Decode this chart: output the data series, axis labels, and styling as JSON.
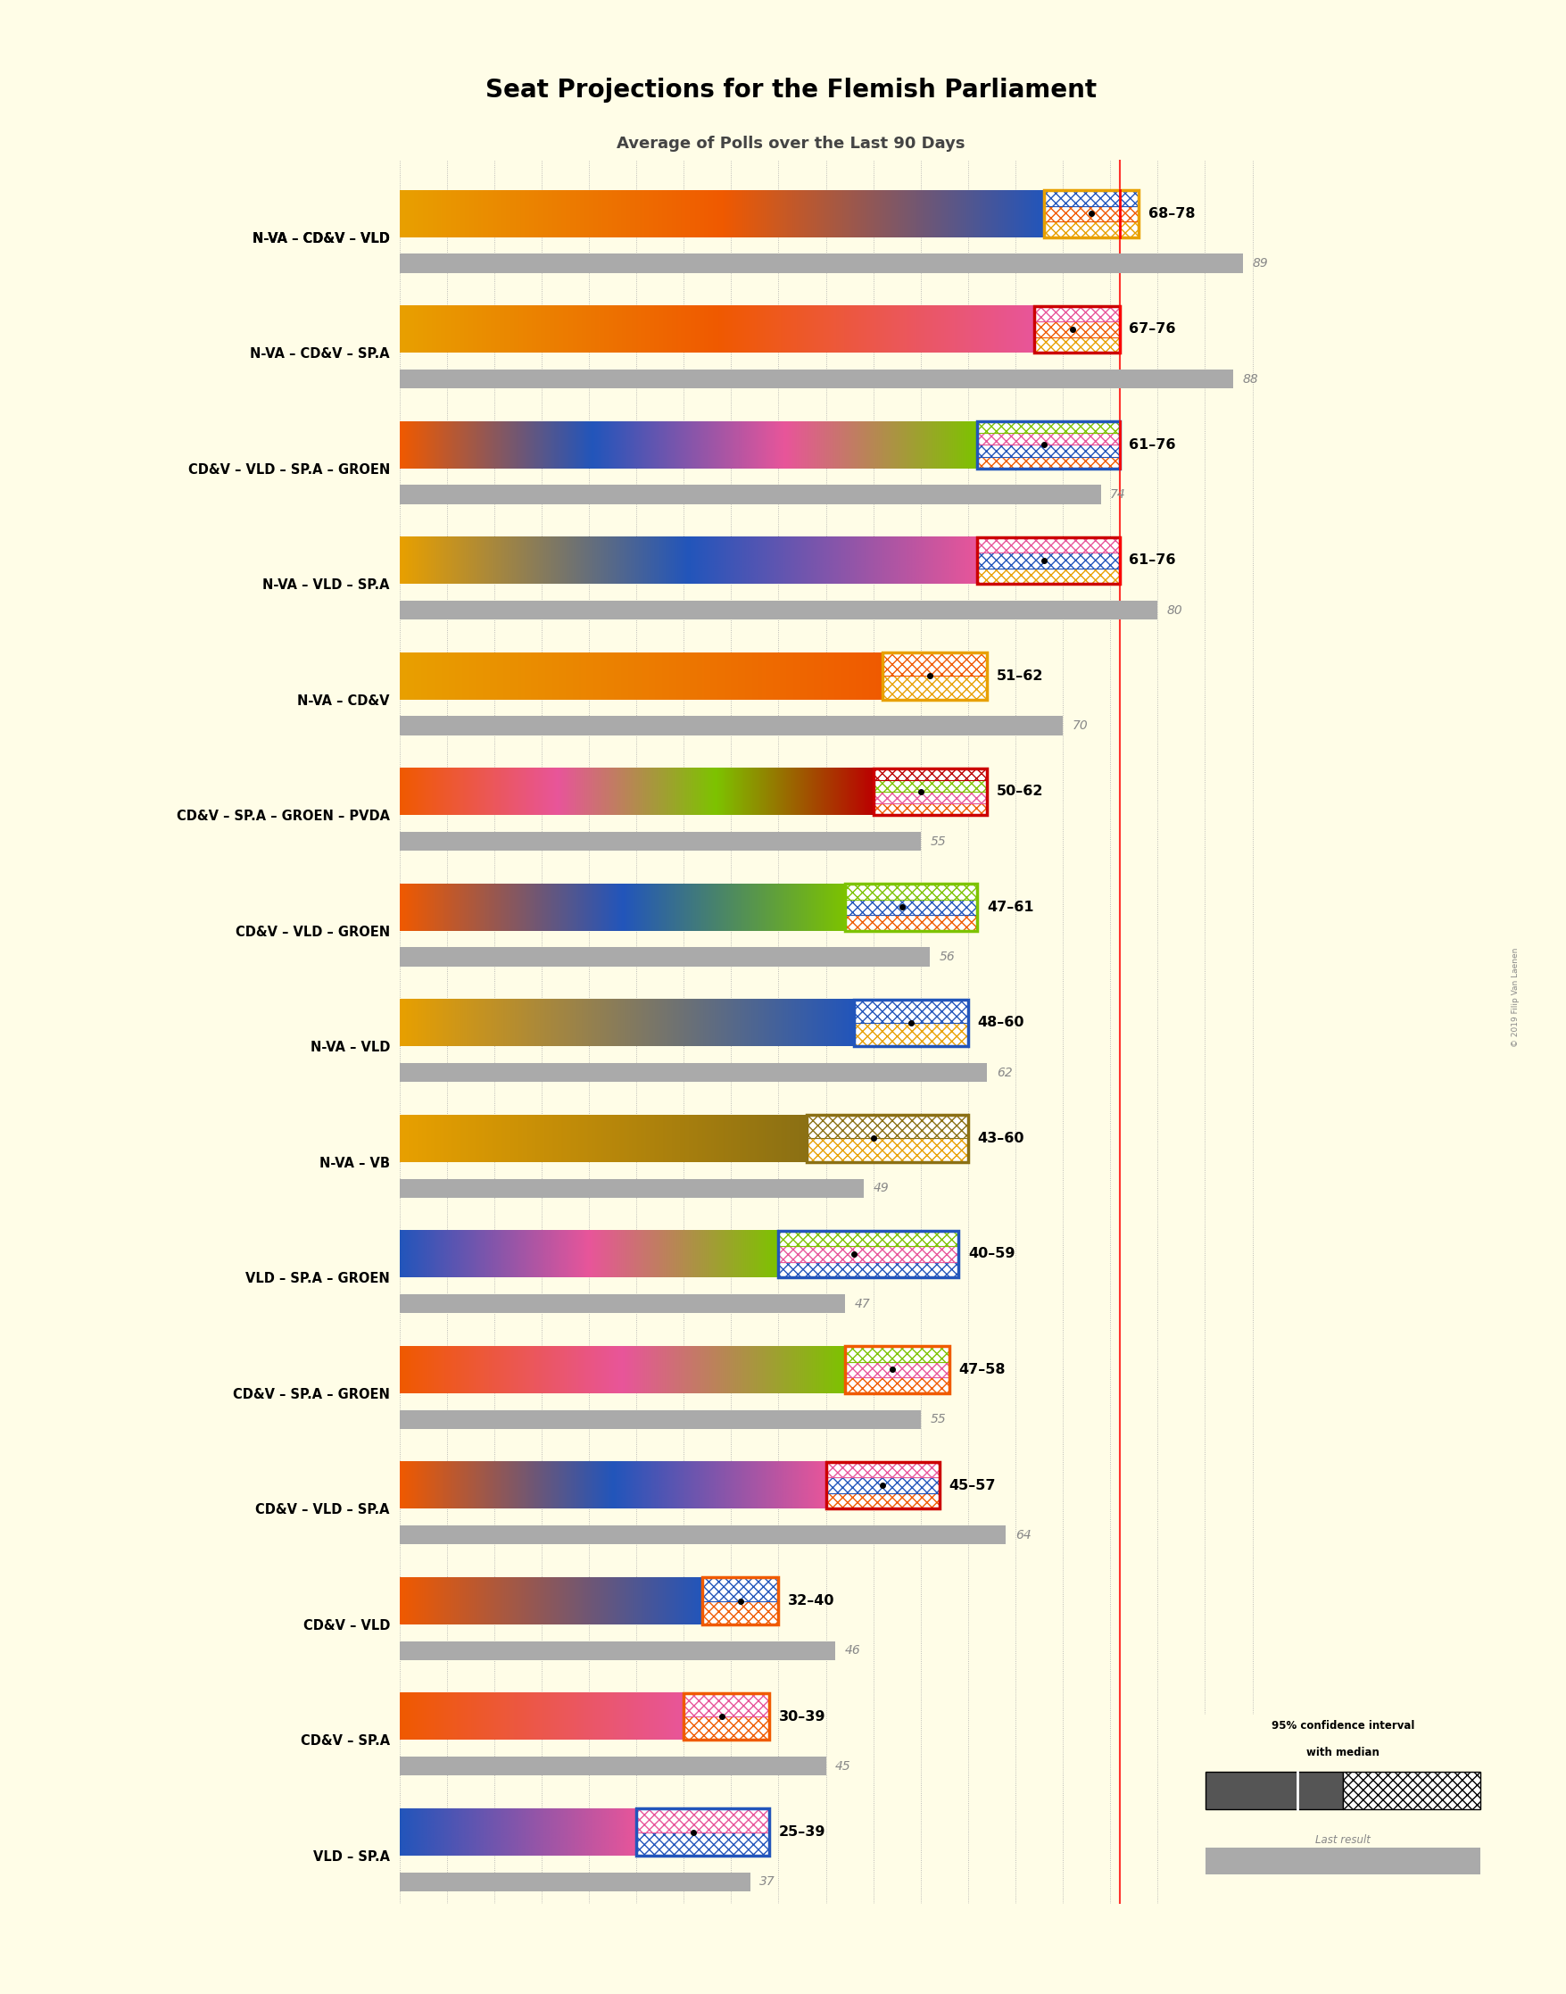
{
  "title": "Seat Projections for the Flemish Parliament",
  "subtitle": "Average of Polls over the Last 90 Days",
  "background_color": "#FFFDE7",
  "majority_line": 76,
  "x_max": 95,
  "coalitions": [
    {
      "label": "N-VA – CD&V – VLD",
      "underline": true,
      "ci_low": 68,
      "ci_high": 78,
      "median": 73,
      "last_result": 89,
      "parties": [
        "N-VA",
        "CD&V",
        "VLD"
      ],
      "box_color": "#E8A000",
      "has_red_border": false
    },
    {
      "label": "N-VA – CD&V – SP.A",
      "underline": false,
      "ci_low": 67,
      "ci_high": 76,
      "median": 71,
      "last_result": 88,
      "parties": [
        "N-VA",
        "CD&V",
        "SP.A"
      ],
      "box_color": "#E8A000",
      "has_red_border": true
    },
    {
      "label": "CD&V – VLD – SP.A – GROEN",
      "underline": false,
      "ci_low": 61,
      "ci_high": 76,
      "median": 68,
      "last_result": 74,
      "parties": [
        "CD&V",
        "VLD",
        "SP.A",
        "GROEN"
      ],
      "box_color": "#2255BB",
      "has_red_border": false
    },
    {
      "label": "N-VA – VLD – SP.A",
      "underline": false,
      "ci_low": 61,
      "ci_high": 76,
      "median": 68,
      "last_result": 80,
      "parties": [
        "N-VA",
        "VLD",
        "SP.A"
      ],
      "box_color": "#2255BB",
      "has_red_border": true
    },
    {
      "label": "N-VA – CD&V",
      "underline": false,
      "ci_low": 51,
      "ci_high": 62,
      "median": 56,
      "last_result": 70,
      "parties": [
        "N-VA",
        "CD&V"
      ],
      "box_color": "#E8A000",
      "has_red_border": false
    },
    {
      "label": "CD&V – SP.A – GROEN – PVDA",
      "underline": false,
      "ci_low": 50,
      "ci_high": 62,
      "median": 55,
      "last_result": 55,
      "parties": [
        "CD&V",
        "SP.A",
        "GROEN",
        "PVDA"
      ],
      "box_color": "#BB0000",
      "has_red_border": true
    },
    {
      "label": "CD&V – VLD – GROEN",
      "underline": false,
      "ci_low": 47,
      "ci_high": 61,
      "median": 53,
      "last_result": 56,
      "parties": [
        "CD&V",
        "VLD",
        "GROEN"
      ],
      "box_color": "#7DC300",
      "has_red_border": false
    },
    {
      "label": "N-VA – VLD",
      "underline": false,
      "ci_low": 48,
      "ci_high": 60,
      "median": 54,
      "last_result": 62,
      "parties": [
        "N-VA",
        "VLD"
      ],
      "box_color": "#2255BB",
      "has_red_border": false
    },
    {
      "label": "N-VA – VB",
      "underline": false,
      "ci_low": 43,
      "ci_high": 60,
      "median": 50,
      "last_result": 49,
      "parties": [
        "N-VA",
        "VB"
      ],
      "box_color": "#8B7014",
      "has_red_border": false
    },
    {
      "label": "VLD – SP.A – GROEN",
      "underline": false,
      "ci_low": 40,
      "ci_high": 59,
      "median": 48,
      "last_result": 47,
      "parties": [
        "VLD",
        "SP.A",
        "GROEN"
      ],
      "box_color": "#2255BB",
      "has_red_border": false
    },
    {
      "label": "CD&V – SP.A – GROEN",
      "underline": false,
      "ci_low": 47,
      "ci_high": 58,
      "median": 52,
      "last_result": 55,
      "parties": [
        "CD&V",
        "SP.A",
        "GROEN"
      ],
      "box_color": "#F05A00",
      "has_red_border": false
    },
    {
      "label": "CD&V – VLD – SP.A",
      "underline": false,
      "ci_low": 45,
      "ci_high": 57,
      "median": 51,
      "last_result": 64,
      "parties": [
        "CD&V",
        "VLD",
        "SP.A"
      ],
      "box_color": "#2255BB",
      "has_red_border": true
    },
    {
      "label": "CD&V – VLD",
      "underline": false,
      "ci_low": 32,
      "ci_high": 40,
      "median": 36,
      "last_result": 46,
      "parties": [
        "CD&V",
        "VLD"
      ],
      "box_color": "#F05A00",
      "has_red_border": false
    },
    {
      "label": "CD&V – SP.A",
      "underline": false,
      "ci_low": 30,
      "ci_high": 39,
      "median": 34,
      "last_result": 45,
      "parties": [
        "CD&V",
        "SP.A"
      ],
      "box_color": "#F05A00",
      "has_red_border": false
    },
    {
      "label": "VLD – SP.A",
      "underline": false,
      "ci_low": 25,
      "ci_high": 39,
      "median": 31,
      "last_result": 37,
      "parties": [
        "VLD",
        "SP.A"
      ],
      "box_color": "#2255BB",
      "has_red_border": false
    }
  ],
  "party_colors": {
    "N-VA": "#E8A000",
    "CD&V": "#F05A00",
    "VLD": "#2255BB",
    "SP.A": "#E8559A",
    "GROEN": "#7DC300",
    "PVDA": "#BB0000",
    "VB": "#8B7014"
  }
}
